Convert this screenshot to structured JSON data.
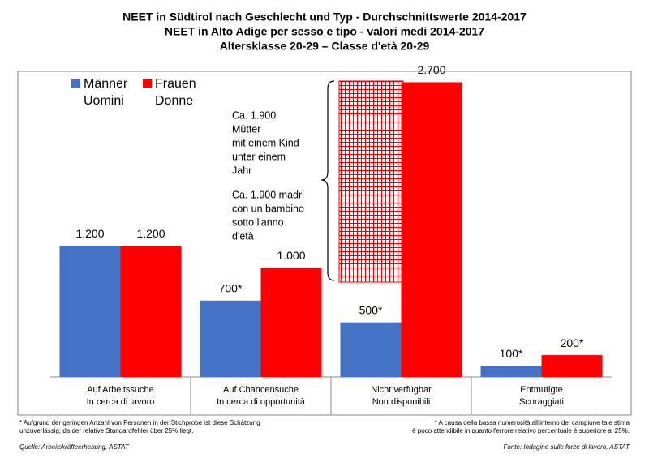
{
  "chart_data": {
    "type": "bar",
    "title": [
      "NEET in Südtirol nach Geschlecht und Typ - Durchschnittswerte 2014-2017",
      "NEET in Alto Adige per sesso e tipo - valori medi 2014-2017",
      "Altersklasse 20-29 – Classe d'età 20-29"
    ],
    "categories": [
      [
        "Auf Arbeitssuche",
        "In cerca di lavoro"
      ],
      [
        "Auf Chancensuche",
        "In cerca di opportunità"
      ],
      [
        "Nicht verfügbar",
        "Non disponibili"
      ],
      [
        "Entmutigte",
        "Scoraggiati"
      ]
    ],
    "series": [
      {
        "name": [
          "Männer",
          "Uomini"
        ],
        "color": "#4472c4",
        "values": [
          1200,
          700,
          500,
          100
        ],
        "value_labels": [
          "1.200",
          "700*",
          "500*",
          "100*"
        ]
      },
      {
        "name": [
          "Frauen",
          "Donne"
        ],
        "color": "#ff0000",
        "values": [
          1200,
          1000,
          2700,
          200
        ],
        "value_labels": [
          "1.200",
          "1.000",
          "2.700",
          "200*"
        ]
      }
    ],
    "ylim": [
      0,
      2800
    ],
    "annotations": [
      [
        "Ca. 1.900",
        "Mütter",
        "mit einem Kind",
        "unter einem",
        "Jahr"
      ],
      [
        "Ca. 1.900 madri",
        "con un bambino",
        "sotto l'anno",
        "d'età"
      ]
    ],
    "footnotes": {
      "de": [
        "* Aufgrund der geringen Anzahl von Personen in der Stichprobe ist diese Schätzung",
        "unzuverlässig, da der relative Standardfehler über 25% liegt."
      ],
      "it": [
        "* A causa della bassa numerosità all'interno del campione tale stima",
        "è poco attendibile in quanto l'errore relativo percentuale è superiore al 25%."
      ]
    },
    "sources": [
      "Quelle: Arbeitskräfteerhebung, ASTAT",
      "Fonte: Indagine sulle forze di lavoro, ASTAT"
    ]
  }
}
